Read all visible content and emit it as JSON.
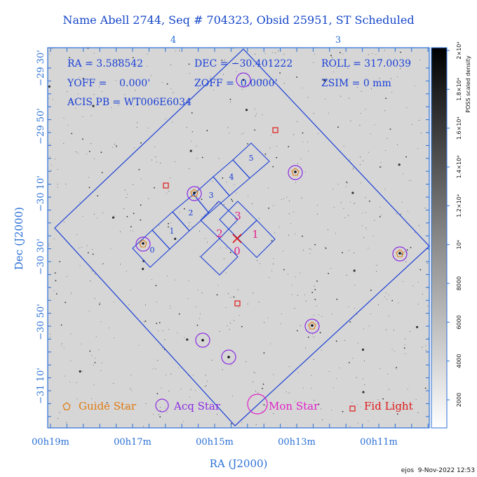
{
  "title": "Name Abell 2744, Seq # 704323, Obsid 25951, ST Scheduled",
  "info": {
    "ra": "RA = 3.588542",
    "dec": "DEC = −30.401222",
    "roll": "ROLL = 317.0039",
    "yoff": "YOFF =    0.000'",
    "zoff": "ZOFF =  0.0000'",
    "zsim": "ZSIM = 0 mm",
    "acis": "ACIS PB = WT006E6034"
  },
  "top_ticks": [
    "4",
    "3"
  ],
  "y_ticks": [
    "−29 30'",
    "−29 50'",
    "−30 10'",
    "−30 30'",
    "−30 50'",
    "−31 10'"
  ],
  "x_ticks": [
    "00h19m",
    "00h17m",
    "00h15m",
    "00h13m",
    "00h11m"
  ],
  "x_label": "RA (J2000)",
  "y_label": "Dec (J2000)",
  "colorbar": {
    "label": "POSS scaled density",
    "ticks": [
      "2000",
      "4000",
      "6000",
      "8000",
      "10⁴",
      "1.2×10⁴",
      "1.4×10⁴",
      "1.6×10⁴",
      "1.8×10⁴",
      "2×10⁴"
    ]
  },
  "legend": {
    "guide": "Guide Star",
    "acq": "Acq Star",
    "mon": "Mon Star",
    "fid": "Fid Light"
  },
  "chips": {
    "s_labels": [
      "0",
      "1",
      "2",
      "3",
      "4",
      "5"
    ],
    "i_labels": [
      "0",
      "1",
      "2",
      "3"
    ]
  },
  "footer": "ejos  9-Nov-2022 12:53",
  "colors": {
    "outline": "#1a3fd6",
    "guide": "#e07a10",
    "acq": "#8a2be2",
    "mon": "#e020c8",
    "fid": "#e01818",
    "axis": "#2a6fd6"
  }
}
